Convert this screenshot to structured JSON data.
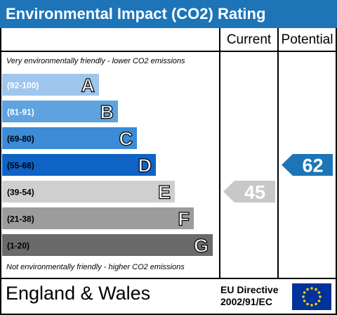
{
  "title": "Environmental Impact (CO2) Rating",
  "columns": {
    "current": "Current",
    "potential": "Potential"
  },
  "captions": {
    "top": "Very environmentally friendly - lower CO2 emissions",
    "bottom": "Not environmentally friendly - higher CO2 emissions"
  },
  "footer": {
    "region": "England & Wales",
    "directive_line1": "EU Directive",
    "directive_line2": "2002/91/EC"
  },
  "colors": {
    "header": "#1d75b8",
    "current_arrow": "#c8c8c8",
    "potential_arrow": "#1d75b8"
  },
  "chart_data": {
    "type": "bar",
    "bands": [
      {
        "letter": "A",
        "range": "(92-100)",
        "color": "#9fc6ec",
        "text_color": "#ffffff"
      },
      {
        "letter": "B",
        "range": "(81-91)",
        "color": "#5ea2e0",
        "text_color": "#ffffff"
      },
      {
        "letter": "C",
        "range": "(69-80)",
        "color": "#3b8bd6",
        "text_color": "#000000"
      },
      {
        "letter": "D",
        "range": "(55-68)",
        "color": "#0e63c4",
        "text_color": "#000000"
      },
      {
        "letter": "E",
        "range": "(39-54)",
        "color": "#cfcfcf",
        "text_color": "#000000"
      },
      {
        "letter": "F",
        "range": "(21-38)",
        "color": "#9c9c9c",
        "text_color": "#000000"
      },
      {
        "letter": "G",
        "range": "(1-20)",
        "color": "#6a6a6a",
        "text_color": "#000000"
      }
    ],
    "current": {
      "value": 45,
      "band": "E"
    },
    "potential": {
      "value": 62,
      "band": "D"
    }
  }
}
